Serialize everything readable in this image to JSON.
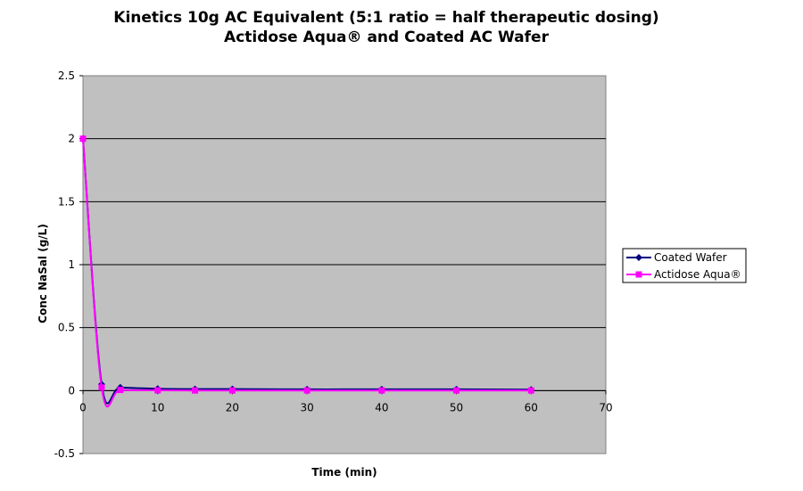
{
  "chart_data": {
    "type": "line",
    "title": "Kinetics 10g AC Equivalent (5:1 ratio = half therapeutic dosing)",
    "subtitle": "Actidose Aqua® and Coated AC Wafer",
    "xlabel": "Time (min)",
    "ylabel": "Conc NaSal (g/L)",
    "xlim": [
      0,
      70
    ],
    "ylim": [
      -0.5,
      2.5
    ],
    "xticks": [
      0,
      10,
      20,
      30,
      40,
      50,
      60,
      70
    ],
    "yticks": [
      -0.5,
      0,
      0.5,
      1,
      1.5,
      2,
      2.5
    ],
    "grid": "horizontal",
    "legend_position": "right",
    "series": [
      {
        "name": "Coated Wafer",
        "color": "#000080",
        "marker": "diamond",
        "x": [
          0,
          2.5,
          5,
          10,
          15,
          20,
          30,
          40,
          50,
          60
        ],
        "y": [
          2.0,
          0.05,
          0.025,
          0.015,
          0.012,
          0.012,
          0.01,
          0.01,
          0.01,
          0.008
        ]
      },
      {
        "name": "Actidose Aqua®",
        "color": "#ff00ff",
        "marker": "square",
        "x": [
          0,
          2.5,
          5,
          10,
          15,
          20,
          30,
          40,
          50,
          60
        ],
        "y": [
          2.0,
          0.025,
          0.005,
          0.002,
          0.001,
          0.001,
          0.001,
          0.001,
          0.001,
          0.001
        ]
      }
    ]
  }
}
